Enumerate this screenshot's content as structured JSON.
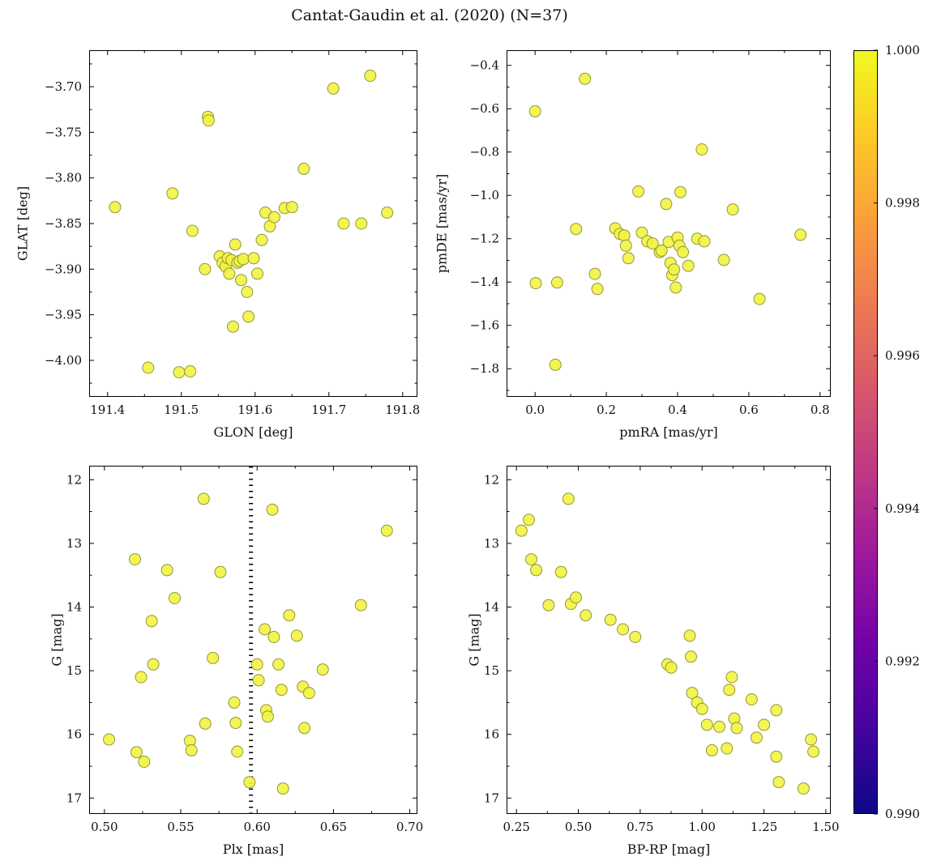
{
  "figure": {
    "title": "Cantat-Gaudin et al. (2020) (N=37)",
    "background": "#ffffff",
    "frame_color": "#000000",
    "marker": {
      "fill": "#f1f440",
      "edge": "#95953a",
      "size": 7,
      "opacity": 0.9
    }
  },
  "chart_data": [
    {
      "id": "glon-glat",
      "type": "scatter",
      "xlabel": "GLON [deg]",
      "ylabel": "GLAT [deg]",
      "xlim": [
        191.375,
        191.82
      ],
      "ylim": [
        -4.04,
        -3.66
      ],
      "xticks": [
        191.4,
        191.5,
        191.6,
        191.7,
        191.8
      ],
      "xtick_labels": [
        "191.4",
        "191.5",
        "191.6",
        "191.7",
        "191.8"
      ],
      "yticks": [
        -4.0,
        -3.95,
        -3.9,
        -3.85,
        -3.8,
        -3.75,
        -3.7
      ],
      "ytick_labels": [
        "−4.00",
        "−3.95",
        "−3.90",
        "−3.85",
        "−3.80",
        "−3.75",
        "−3.70"
      ],
      "x": [
        191.41,
        191.455,
        191.488,
        191.497,
        191.512,
        191.515,
        191.532,
        191.536,
        191.537,
        191.552,
        191.556,
        191.56,
        191.563,
        191.565,
        191.568,
        191.57,
        191.573,
        191.576,
        191.579,
        191.581,
        191.584,
        191.589,
        191.591,
        191.598,
        191.603,
        191.609,
        191.614,
        191.62,
        191.626,
        191.64,
        191.65,
        191.666,
        191.706,
        191.72,
        191.744,
        191.756,
        191.779
      ],
      "y": [
        -3.832,
        -4.008,
        -3.817,
        -4.013,
        -4.012,
        -3.858,
        -3.9,
        -3.733,
        -3.737,
        -3.886,
        -3.893,
        -3.897,
        -3.888,
        -3.905,
        -3.89,
        -3.963,
        -3.873,
        -3.893,
        -3.891,
        -3.912,
        -3.889,
        -3.925,
        -3.952,
        -3.888,
        -3.905,
        -3.868,
        -3.838,
        -3.853,
        -3.843,
        -3.833,
        -3.832,
        -3.79,
        -3.702,
        -3.85,
        -3.85,
        -3.688,
        -3.838
      ]
    },
    {
      "id": "pmra-pmde",
      "type": "scatter",
      "xlabel": "pmRA [mas/yr]",
      "ylabel": "pmDE [mas/yr]",
      "xlim": [
        -0.08,
        0.83
      ],
      "ylim": [
        -1.93,
        -0.33
      ],
      "xticks": [
        0.0,
        0.2,
        0.4,
        0.6,
        0.8
      ],
      "xtick_labels": [
        "0.0",
        "0.2",
        "0.4",
        "0.6",
        "0.8"
      ],
      "yticks": [
        -1.8,
        -1.6,
        -1.4,
        -1.2,
        -1.0,
        -0.8,
        -0.6,
        -0.4
      ],
      "ytick_labels": [
        "−1.8",
        "−1.6",
        "−1.4",
        "−1.2",
        "−1.0",
        "−0.8",
        "−0.6",
        "−0.4"
      ],
      "x": [
        0.0,
        0.002,
        0.057,
        0.062,
        0.115,
        0.14,
        0.168,
        0.175,
        0.225,
        0.238,
        0.25,
        0.255,
        0.262,
        0.29,
        0.3,
        0.315,
        0.33,
        0.35,
        0.355,
        0.368,
        0.375,
        0.38,
        0.385,
        0.39,
        0.395,
        0.4,
        0.405,
        0.408,
        0.415,
        0.43,
        0.455,
        0.468,
        0.475,
        0.53,
        0.555,
        0.63,
        0.745
      ],
      "y": [
        -0.612,
        -1.405,
        -1.782,
        -1.402,
        -1.155,
        -0.462,
        -1.362,
        -1.432,
        -1.152,
        -1.178,
        -1.185,
        -1.232,
        -1.29,
        -0.982,
        -1.172,
        -1.212,
        -1.222,
        -1.262,
        -1.255,
        -1.04,
        -1.215,
        -1.312,
        -1.368,
        -1.342,
        -1.425,
        -1.195,
        -1.232,
        -0.985,
        -1.262,
        -1.325,
        -1.2,
        -0.788,
        -1.212,
        -1.298,
        -1.065,
        -1.478,
        -1.182
      ]
    },
    {
      "id": "plx-g",
      "type": "scatter",
      "xlabel": "Plx [mas]",
      "ylabel": "G [mag]",
      "xlim": [
        0.49,
        0.705
      ],
      "ylim": [
        17.25,
        11.78
      ],
      "vline": 0.596,
      "xticks": [
        0.5,
        0.55,
        0.6,
        0.65,
        0.7
      ],
      "xtick_labels": [
        "0.50",
        "0.55",
        "0.60",
        "0.65",
        "0.70"
      ],
      "yticks": [
        12,
        13,
        14,
        15,
        16,
        17
      ],
      "ytick_labels": [
        "12",
        "13",
        "14",
        "15",
        "16",
        "17"
      ],
      "x": [
        0.503,
        0.52,
        0.521,
        0.524,
        0.526,
        0.531,
        0.532,
        0.541,
        0.546,
        0.556,
        0.557,
        0.565,
        0.566,
        0.571,
        0.576,
        0.585,
        0.586,
        0.587,
        0.595,
        0.6,
        0.601,
        0.605,
        0.606,
        0.607,
        0.61,
        0.611,
        0.614,
        0.616,
        0.617,
        0.621,
        0.626,
        0.63,
        0.631,
        0.634,
        0.643,
        0.668,
        0.685
      ],
      "y": [
        16.08,
        13.25,
        16.28,
        15.1,
        16.43,
        14.22,
        14.9,
        13.42,
        13.86,
        16.1,
        16.25,
        12.3,
        15.83,
        14.8,
        13.45,
        15.5,
        15.82,
        16.27,
        16.75,
        14.9,
        15.15,
        14.35,
        15.62,
        15.72,
        12.47,
        14.47,
        14.9,
        15.3,
        16.85,
        14.13,
        14.45,
        15.25,
        15.9,
        15.35,
        14.98,
        13.97,
        12.8
      ]
    },
    {
      "id": "bprp-g",
      "type": "scatter",
      "xlabel": "BP-RP [mag]",
      "ylabel": "G [mag]",
      "xlim": [
        0.21,
        1.52
      ],
      "ylim": [
        17.25,
        11.78
      ],
      "xticks": [
        0.25,
        0.5,
        0.75,
        1.0,
        1.25,
        1.5
      ],
      "xtick_labels": [
        "0.25",
        "0.50",
        "0.75",
        "1.00",
        "1.25",
        "1.50"
      ],
      "yticks": [
        12,
        13,
        14,
        15,
        16,
        17
      ],
      "ytick_labels": [
        "12",
        "13",
        "14",
        "15",
        "16",
        "17"
      ],
      "x": [
        0.27,
        0.3,
        0.31,
        0.33,
        0.38,
        0.43,
        0.46,
        0.47,
        0.49,
        0.53,
        0.63,
        0.68,
        0.73,
        0.86,
        0.875,
        0.95,
        0.955,
        0.96,
        0.98,
        1.0,
        1.02,
        1.04,
        1.07,
        1.1,
        1.11,
        1.12,
        1.13,
        1.14,
        1.2,
        1.22,
        1.25,
        1.3,
        1.3,
        1.31,
        1.41,
        1.44,
        1.45
      ],
      "y": [
        12.8,
        12.63,
        13.25,
        13.42,
        13.97,
        13.45,
        12.3,
        13.95,
        13.85,
        14.13,
        14.2,
        14.35,
        14.47,
        14.9,
        14.95,
        14.45,
        14.78,
        15.35,
        15.5,
        15.6,
        15.85,
        16.25,
        15.88,
        16.22,
        15.3,
        15.1,
        15.75,
        15.9,
        15.45,
        16.05,
        15.85,
        15.62,
        16.35,
        16.75,
        16.85,
        16.08,
        16.27
      ]
    },
    {
      "id": "colorbar",
      "type": "colorbar",
      "range": [
        0.99,
        1.0
      ],
      "ticks": [
        0.99,
        0.992,
        0.994,
        0.996,
        0.998,
        1.0
      ],
      "tick_labels": [
        "0.990",
        "0.992",
        "0.994",
        "0.996",
        "0.998",
        "1.000"
      ],
      "colormap": "plasma",
      "stops": [
        "#0d0887",
        "#46039f",
        "#7201a8",
        "#9c179e",
        "#bd3786",
        "#d8576b",
        "#ed7953",
        "#fb9f3a",
        "#fdca26",
        "#f0f921"
      ]
    }
  ]
}
